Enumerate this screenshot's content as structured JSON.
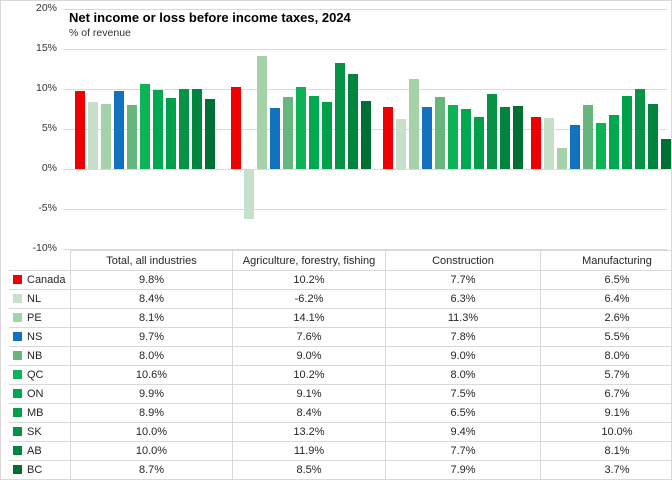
{
  "chart": {
    "title": "Net income or loss before income taxes, 2024",
    "subtitle": "% of revenue",
    "y_axis": {
      "ticks": [
        "20%",
        "15%",
        "10%",
        "5%",
        "0%",
        "-5%",
        "-10%"
      ],
      "max": 20,
      "min": -10,
      "step": 5
    }
  },
  "chart_data": {
    "type": "bar",
    "title": "Net income or loss before income taxes, 2024",
    "subtitle": "% of revenue",
    "xlabel": "",
    "ylabel": "% of revenue",
    "ylim": [
      -10,
      20
    ],
    "grid": true,
    "legend_position": "table-row-labels",
    "categories": [
      "Total, all industries",
      "Agriculture, forestry, fishing",
      "Construction",
      "Manufacturing"
    ],
    "series": [
      {
        "name": "Canada",
        "color": "#ee0000",
        "values": [
          9.8,
          10.2,
          7.7,
          6.5
        ]
      },
      {
        "name": "NL",
        "color": "#c7e0c9",
        "values": [
          8.4,
          -6.2,
          6.3,
          6.4
        ]
      },
      {
        "name": "PE",
        "color": "#a5d2a8",
        "values": [
          8.1,
          14.1,
          11.3,
          2.6
        ]
      },
      {
        "name": "NS",
        "color": "#1272c0",
        "values": [
          9.7,
          7.6,
          7.8,
          5.5
        ]
      },
      {
        "name": "NB",
        "color": "#66b67e",
        "values": [
          8.0,
          9.0,
          9.0,
          8.0
        ]
      },
      {
        "name": "QC",
        "color": "#0cb456",
        "values": [
          10.6,
          10.2,
          8.0,
          5.7
        ]
      },
      {
        "name": "ON",
        "color": "#00a94f",
        "values": [
          9.9,
          9.1,
          7.5,
          6.7
        ]
      },
      {
        "name": "MB",
        "color": "#009f4a",
        "values": [
          8.9,
          8.4,
          6.5,
          9.1
        ]
      },
      {
        "name": "SK",
        "color": "#089245",
        "values": [
          10.0,
          13.2,
          9.4,
          10.0
        ]
      },
      {
        "name": "AB",
        "color": "#00853e",
        "values": [
          10.0,
          11.9,
          7.7,
          8.1
        ]
      },
      {
        "name": "BC",
        "color": "#006f33",
        "values": [
          8.7,
          8.5,
          7.9,
          3.7
        ]
      }
    ]
  },
  "table": {
    "headers": [
      "",
      "Total, all industries",
      "Agriculture, forestry, fishing",
      "Construction",
      "Manufacturing"
    ],
    "rows": [
      {
        "label": "Canada",
        "color": "#ee0000",
        "cells": [
          "9.8%",
          "10.2%",
          "7.7%",
          "6.5%"
        ]
      },
      {
        "label": "NL",
        "color": "#c7e0c9",
        "cells": [
          "8.4%",
          "-6.2%",
          "6.3%",
          "6.4%"
        ]
      },
      {
        "label": "PE",
        "color": "#a5d2a8",
        "cells": [
          "8.1%",
          "14.1%",
          "11.3%",
          "2.6%"
        ]
      },
      {
        "label": "NS",
        "color": "#1272c0",
        "cells": [
          "9.7%",
          "7.6%",
          "7.8%",
          "5.5%"
        ]
      },
      {
        "label": "NB",
        "color": "#66b67e",
        "cells": [
          "8.0%",
          "9.0%",
          "9.0%",
          "8.0%"
        ]
      },
      {
        "label": "QC",
        "color": "#0cb456",
        "cells": [
          "10.6%",
          "10.2%",
          "8.0%",
          "5.7%"
        ]
      },
      {
        "label": "ON",
        "color": "#00a94f",
        "cells": [
          "9.9%",
          "9.1%",
          "7.5%",
          "6.7%"
        ]
      },
      {
        "label": "MB",
        "color": "#009f4a",
        "cells": [
          "8.9%",
          "8.4%",
          "6.5%",
          "9.1%"
        ]
      },
      {
        "label": "SK",
        "color": "#089245",
        "cells": [
          "10.0%",
          "13.2%",
          "9.4%",
          "10.0%"
        ]
      },
      {
        "label": "AB",
        "color": "#00853e",
        "cells": [
          "10.0%",
          "11.9%",
          "7.7%",
          "8.1%"
        ]
      },
      {
        "label": "BC",
        "color": "#006f33",
        "cells": [
          "8.7%",
          "8.5%",
          "7.9%",
          "3.7%"
        ]
      }
    ]
  }
}
